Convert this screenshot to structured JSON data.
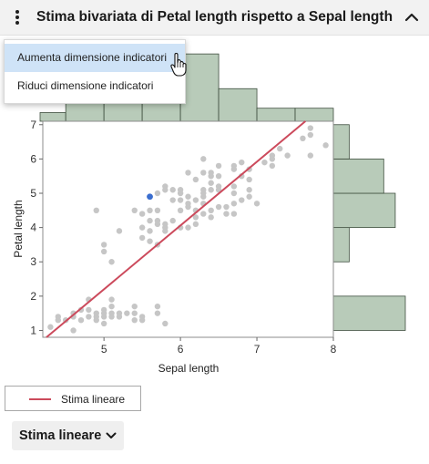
{
  "header": {
    "title": "Stima bivariata di Petal length rispetto a Sepal length"
  },
  "menu": {
    "items": [
      {
        "label": "Aumenta dimensione indicatori",
        "hover": true
      },
      {
        "label": "Riduci dimensione indicatori",
        "hover": false
      }
    ]
  },
  "legend": {
    "label": "Stima lineare"
  },
  "fit_button": {
    "label": "Stima lineare"
  },
  "colors": {
    "point": "#c6c6c6",
    "highlight_point": "#3a6ecf",
    "fit_line": "#cc4a5c",
    "histogram_fill": "#b8cbb9",
    "histogram_stroke": "#3f4f3f"
  },
  "chart_data": {
    "type": "scatter",
    "xlabel": "Sepal length",
    "ylabel": "Petal length",
    "xlim": [
      4.2,
      8.0
    ],
    "ylim": [
      0.8,
      7.1
    ],
    "x_ticks": [
      "5",
      "6",
      "7",
      "8"
    ],
    "y_ticks": [
      "1",
      "2",
      "3",
      "4",
      "5",
      "6",
      "7"
    ],
    "x_tick_values": [
      5,
      6,
      7,
      8
    ],
    "y_tick_values": [
      1,
      2,
      3,
      4,
      5,
      6,
      7
    ],
    "fit_line": {
      "slope": 1.86,
      "intercept": -7.1
    },
    "highlighted_point": [
      5.6,
      4.9
    ],
    "points": [
      [
        4.3,
        1.1
      ],
      [
        4.4,
        1.3
      ],
      [
        4.4,
        1.4
      ],
      [
        4.5,
        1.3
      ],
      [
        4.6,
        1.0
      ],
      [
        4.6,
        1.4
      ],
      [
        4.6,
        1.5
      ],
      [
        4.7,
        1.3
      ],
      [
        4.7,
        1.6
      ],
      [
        4.8,
        1.4
      ],
      [
        4.8,
        1.6
      ],
      [
        4.8,
        1.9
      ],
      [
        4.9,
        1.4
      ],
      [
        4.9,
        1.5
      ],
      [
        4.9,
        1.3
      ],
      [
        5.0,
        1.2
      ],
      [
        5.0,
        1.4
      ],
      [
        5.0,
        1.5
      ],
      [
        5.0,
        1.6
      ],
      [
        5.1,
        1.4
      ],
      [
        5.1,
        1.5
      ],
      [
        5.1,
        1.7
      ],
      [
        5.1,
        1.9
      ],
      [
        5.2,
        1.4
      ],
      [
        5.2,
        1.5
      ],
      [
        5.3,
        1.5
      ],
      [
        5.4,
        1.3
      ],
      [
        5.4,
        1.5
      ],
      [
        5.4,
        1.7
      ],
      [
        5.5,
        1.3
      ],
      [
        5.5,
        1.4
      ],
      [
        5.7,
        1.5
      ],
      [
        5.7,
        1.7
      ],
      [
        5.8,
        1.2
      ],
      [
        4.9,
        4.5
      ],
      [
        5.0,
        3.3
      ],
      [
        5.0,
        3.5
      ],
      [
        5.1,
        3.0
      ],
      [
        5.2,
        3.9
      ],
      [
        5.4,
        4.5
      ],
      [
        5.5,
        3.7
      ],
      [
        5.5,
        4.0
      ],
      [
        5.5,
        4.4
      ],
      [
        5.6,
        3.6
      ],
      [
        5.6,
        3.9
      ],
      [
        5.6,
        4.2
      ],
      [
        5.6,
        4.5
      ],
      [
        5.7,
        3.5
      ],
      [
        5.7,
        4.1
      ],
      [
        5.7,
        4.2
      ],
      [
        5.7,
        4.5
      ],
      [
        5.8,
        3.9
      ],
      [
        5.8,
        4.0
      ],
      [
        5.8,
        4.1
      ],
      [
        5.9,
        4.2
      ],
      [
        5.9,
        4.8
      ],
      [
        6.0,
        4.0
      ],
      [
        6.0,
        4.5
      ],
      [
        6.0,
        5.1
      ],
      [
        6.1,
        4.0
      ],
      [
        6.1,
        4.7
      ],
      [
        6.2,
        4.3
      ],
      [
        6.2,
        4.5
      ],
      [
        6.3,
        4.4
      ],
      [
        6.3,
        4.7
      ],
      [
        6.3,
        4.9
      ],
      [
        6.4,
        4.3
      ],
      [
        6.4,
        4.5
      ],
      [
        6.5,
        4.6
      ],
      [
        6.6,
        4.4
      ],
      [
        6.6,
        4.6
      ],
      [
        6.7,
        4.4
      ],
      [
        6.7,
        4.7
      ],
      [
        6.8,
        4.8
      ],
      [
        6.9,
        4.9
      ],
      [
        7.0,
        4.7
      ],
      [
        6.1,
        4.6
      ],
      [
        6.2,
        4.8
      ],
      [
        6.7,
        5.0
      ],
      [
        5.6,
        4.9
      ],
      [
        5.7,
        5.0
      ],
      [
        5.8,
        5.1
      ],
      [
        5.9,
        5.1
      ],
      [
        6.0,
        4.8
      ],
      [
        6.0,
        5.0
      ],
      [
        6.1,
        5.6
      ],
      [
        6.2,
        5.4
      ],
      [
        6.3,
        5.0
      ],
      [
        6.3,
        5.6
      ],
      [
        6.3,
        6.0
      ],
      [
        6.4,
        5.3
      ],
      [
        6.4,
        5.5
      ],
      [
        6.4,
        5.6
      ],
      [
        6.5,
        5.1
      ],
      [
        6.5,
        5.5
      ],
      [
        6.5,
        5.8
      ],
      [
        6.7,
        5.2
      ],
      [
        6.7,
        5.7
      ],
      [
        6.7,
        5.8
      ],
      [
        6.8,
        5.5
      ],
      [
        6.9,
        5.1
      ],
      [
        6.9,
        5.4
      ],
      [
        6.9,
        5.7
      ],
      [
        7.1,
        5.9
      ],
      [
        7.2,
        6.0
      ],
      [
        7.2,
        6.1
      ],
      [
        7.3,
        6.3
      ],
      [
        7.4,
        6.1
      ],
      [
        7.6,
        6.6
      ],
      [
        7.7,
        6.1
      ],
      [
        7.7,
        6.7
      ],
      [
        7.7,
        6.9
      ],
      [
        7.9,
        6.4
      ],
      [
        6.1,
        4.9
      ],
      [
        5.8,
        5.2
      ],
      [
        6.2,
        4.1
      ],
      [
        6.5,
        5.2
      ],
      [
        6.3,
        5.1
      ],
      [
        6.4,
        5.1
      ],
      [
        6.8,
        5.9
      ],
      [
        7.2,
        5.8
      ]
    ],
    "x_histogram": {
      "bins": [
        4.0,
        4.5,
        5.0,
        5.5,
        6.0,
        6.5,
        7.0,
        7.5,
        8.0
      ],
      "counts": [
        4,
        27,
        27,
        34,
        31,
        15,
        6,
        6
      ]
    },
    "y_histogram": {
      "bins": [
        1,
        2,
        3,
        4,
        5,
        6,
        7
      ],
      "counts": [
        50,
        0,
        11,
        43,
        35,
        11
      ]
    }
  }
}
